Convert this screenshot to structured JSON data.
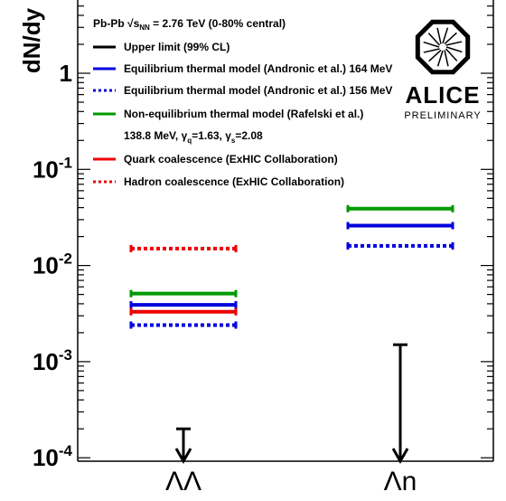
{
  "chart_data": {
    "type": "scatter",
    "ylabel": "dN/dy",
    "yscale": "log",
    "ylim": [
      0.0001,
      5
    ],
    "y_tick_labels": [
      {
        "value": 0.0001,
        "base": "10",
        "exp": "-4"
      },
      {
        "value": 0.001,
        "base": "10",
        "exp": "-3"
      },
      {
        "value": 0.01,
        "base": "10",
        "exp": "-2"
      },
      {
        "value": 0.1,
        "base": "10",
        "exp": "-1"
      },
      {
        "value": 1,
        "base": "1",
        "exp": ""
      }
    ],
    "categories": [
      "ΛΛ",
      "Λn"
    ],
    "header": {
      "system": "Pb-Pb",
      "energy_prefix": "√",
      "energy_var": "s",
      "energy_sub": "NN",
      "energy_rest": " = 2.76 TeV (0-80% central)"
    },
    "logo": {
      "name": "ALICE",
      "sub": "PRELIMINARY"
    },
    "legend": [
      {
        "label": "Upper limit (99% CL)",
        "color": "#000000",
        "dashed": false
      },
      {
        "label": "Equilibrium thermal model (Andronic et al.) 164 MeV",
        "color": "#0000dd",
        "dashed": false
      },
      {
        "label": "Equilibrium thermal model (Andronic et al.) 156 MeV",
        "color": "#0000dd",
        "dashed": true
      },
      {
        "label": "Non-equilibrium thermal model (Rafelski et al.)",
        "color": "#009900",
        "dashed": false
      },
      {
        "label": "Quark coalescence (ExHIC Collaboration)",
        "color": "#ee0000",
        "dashed": false
      },
      {
        "label": "Hadron coalescence (ExHIC Collaboration)",
        "color": "#ee0000",
        "dashed": true
      }
    ],
    "legend_extra": {
      "prefix": "138.8 MeV, ",
      "g1": "γ",
      "g1_sub": "q",
      "g1_val": "=1.63, ",
      "g2": "γ",
      "g2_sub": "s",
      "g2_val": "=2.08"
    },
    "series": [
      {
        "name": "Equilibrium thermal model (Andronic et al.) 164 MeV",
        "color": "#0000dd",
        "dashed": false,
        "values": [
          0.0039,
          0.026
        ]
      },
      {
        "name": "Equilibrium thermal model (Andronic et al.) 156 MeV",
        "color": "#0000dd",
        "dashed": true,
        "values": [
          0.0024,
          0.016
        ]
      },
      {
        "name": "Non-equilibrium thermal model (Rafelski et al.)",
        "color": "#009900",
        "dashed": false,
        "values": [
          0.0051,
          0.039
        ]
      },
      {
        "name": "Quark coalescence (ExHIC Collaboration)",
        "color": "#ee0000",
        "dashed": false,
        "values": [
          0.0033,
          null
        ]
      },
      {
        "name": "Hadron coalescence (ExHIC Collaboration)",
        "color": "#ee0000",
        "dashed": true,
        "values": [
          0.015,
          null
        ]
      }
    ],
    "upper_limits": [
      0.0002,
      0.0015
    ]
  }
}
